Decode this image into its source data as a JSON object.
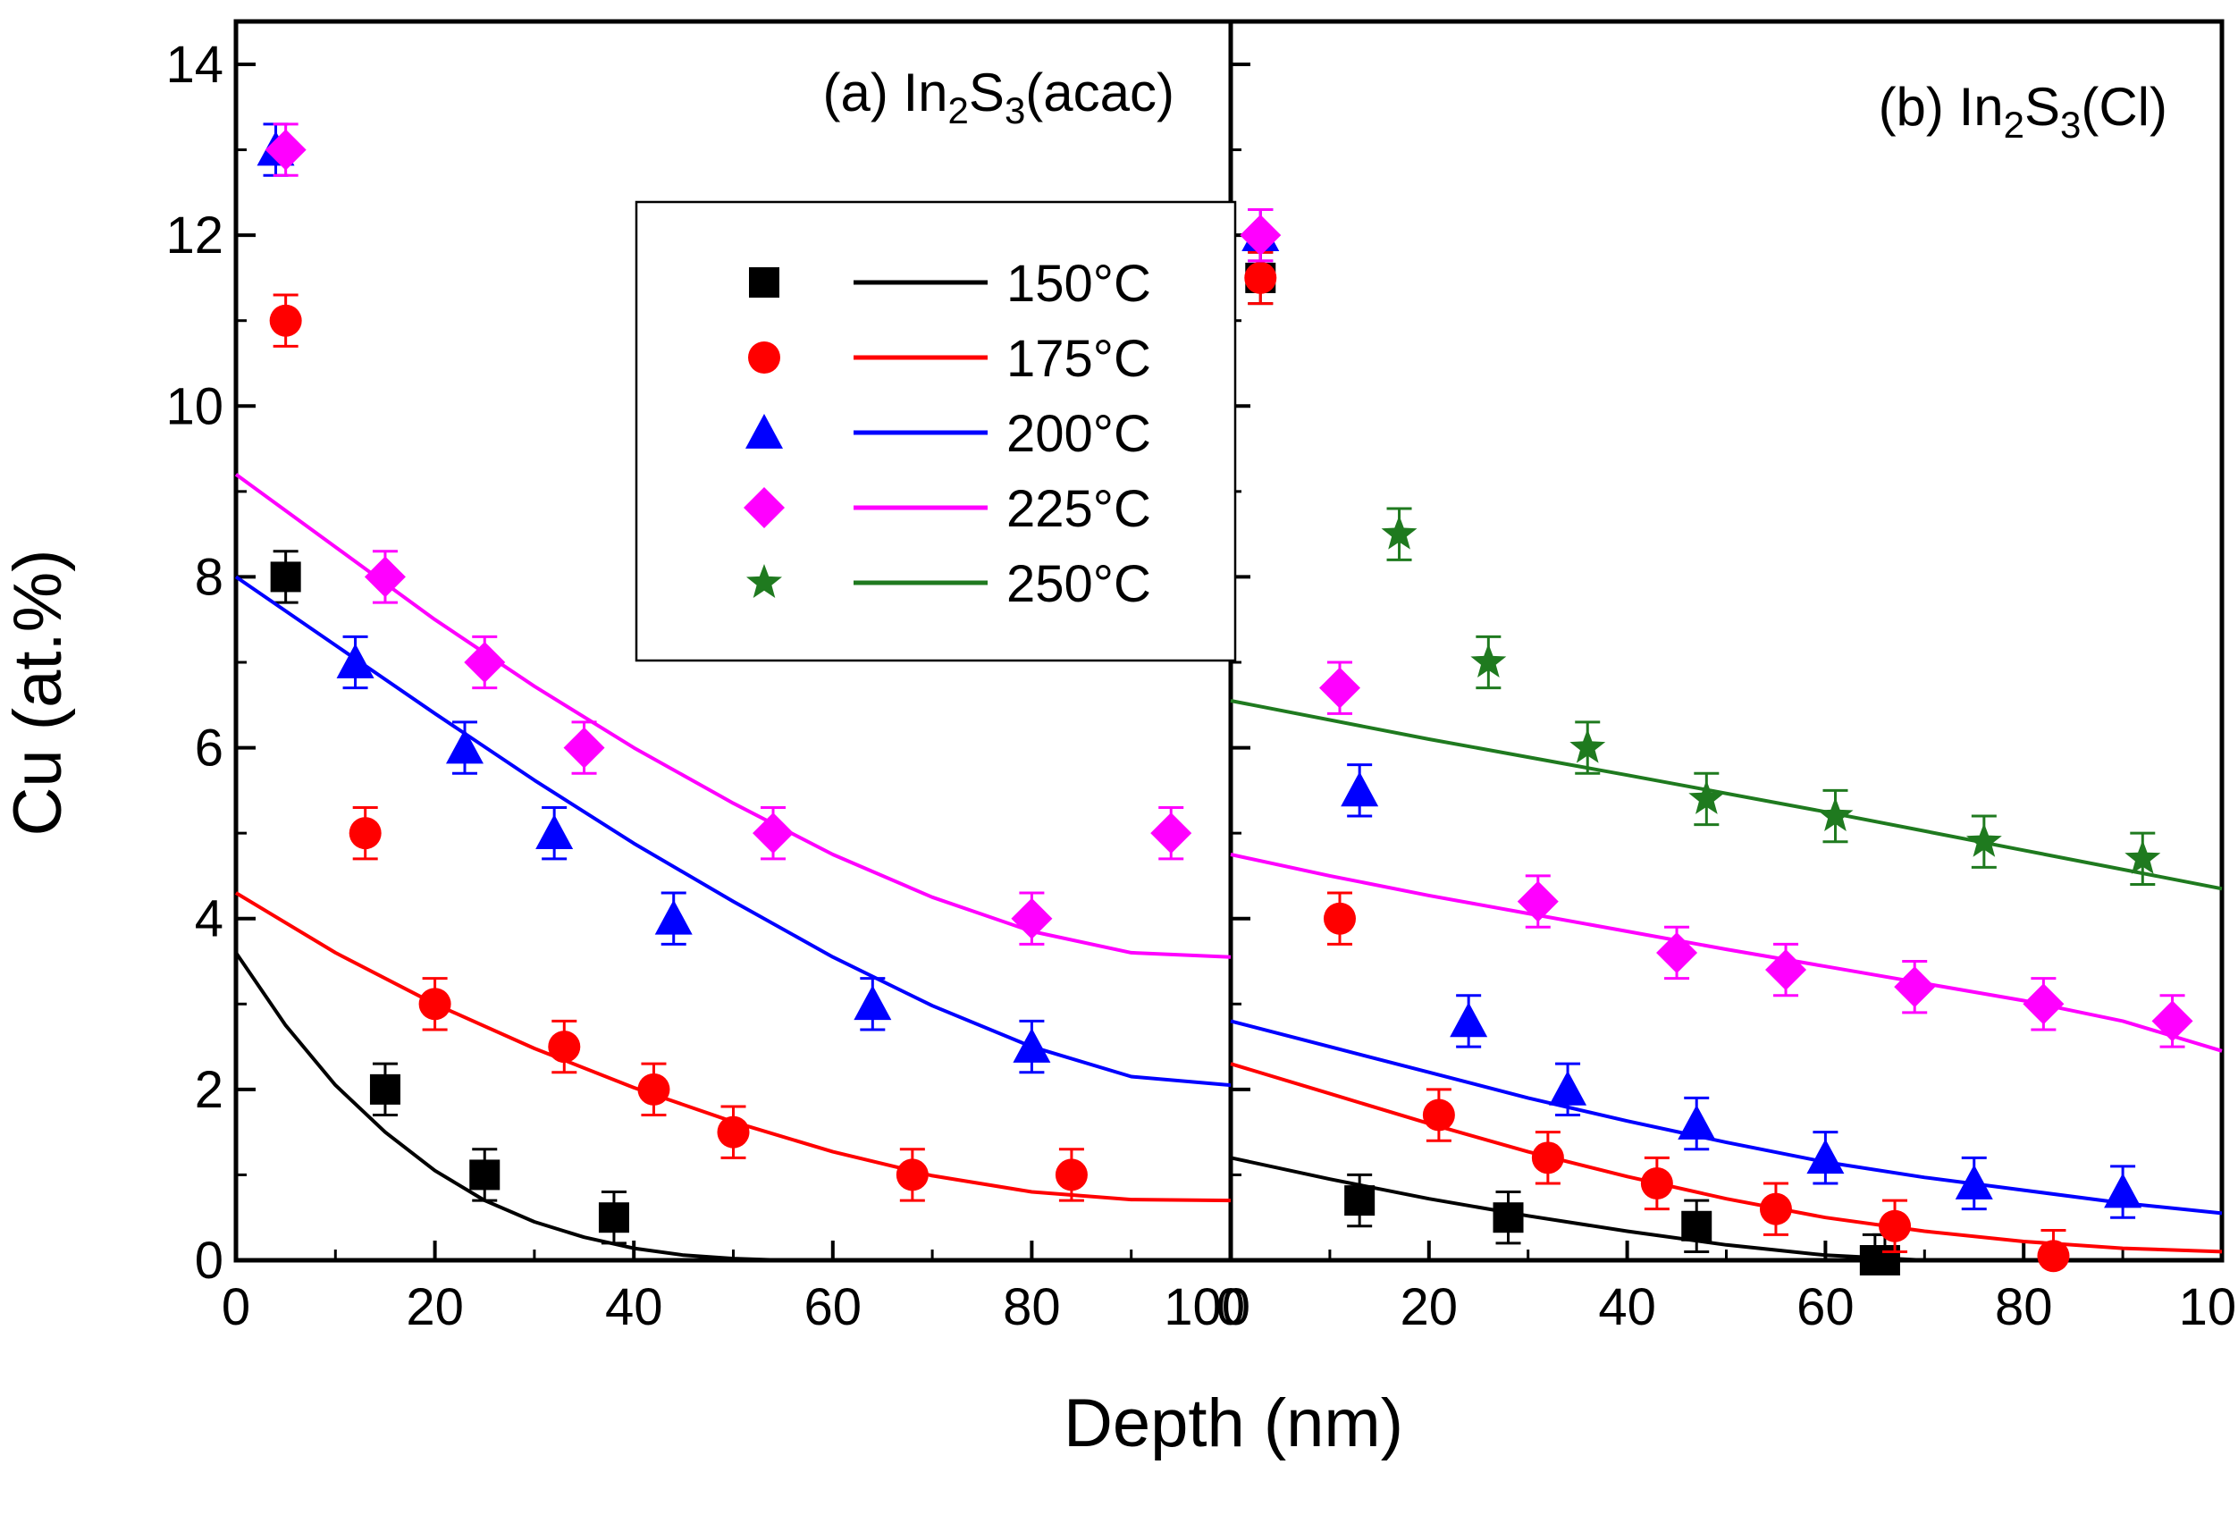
{
  "chart_data": {
    "type": "scatter",
    "ylabel": "Cu (at.%)",
    "xlabel": "Depth (nm)",
    "ylim": [
      0,
      14
    ],
    "yticks": [
      "0",
      "2",
      "4",
      "6",
      "8",
      "10",
      "12",
      "14"
    ],
    "xlim": [
      0,
      100
    ],
    "xticks": [
      "0",
      "20",
      "40",
      "60",
      "80",
      "100"
    ],
    "legend": {
      "placement": "top-right of panel (a)",
      "entries": [
        {
          "label": "150°C",
          "color": "#000000",
          "marker": "square"
        },
        {
          "label": "175°C",
          "color": "#ff0000",
          "marker": "circle"
        },
        {
          "label": "200°C",
          "color": "#0000ff",
          "marker": "triangle"
        },
        {
          "label": "225°C",
          "color": "#ff00ff",
          "marker": "diamond"
        },
        {
          "label": "250°C",
          "color": "#1f7a1f",
          "marker": "star"
        }
      ]
    },
    "panels": [
      {
        "label": {
          "prefix": "(a) In",
          "sub1": "2",
          "mid": "S",
          "sub2": "3",
          "suffix": "(acac)"
        },
        "series": [
          {
            "name": "150°C",
            "points": [
              [
                5,
                8.0
              ],
              [
                15,
                2.0
              ],
              [
                25,
                1.0
              ],
              [
                38,
                0.5
              ]
            ],
            "err": 0.3,
            "fit": [
              [
                0,
                3.6
              ],
              [
                5,
                2.75
              ],
              [
                10,
                2.05
              ],
              [
                15,
                1.5
              ],
              [
                20,
                1.05
              ],
              [
                25,
                0.7
              ],
              [
                30,
                0.45
              ],
              [
                35,
                0.27
              ],
              [
                40,
                0.14
              ],
              [
                45,
                0.06
              ],
              [
                50,
                0.02
              ],
              [
                55,
                0.0
              ],
              [
                65,
                0.0
              ]
            ]
          },
          {
            "name": "175°C",
            "points": [
              [
                5,
                11.0
              ],
              [
                13,
                5.0
              ],
              [
                20,
                3.0
              ],
              [
                33,
                2.5
              ],
              [
                42,
                2.0
              ],
              [
                50,
                1.5
              ],
              [
                68,
                1.0
              ],
              [
                84,
                1.0
              ]
            ],
            "err": 0.3,
            "fit": [
              [
                0,
                4.3
              ],
              [
                10,
                3.6
              ],
              [
                20,
                3.0
              ],
              [
                30,
                2.48
              ],
              [
                40,
                2.02
              ],
              [
                50,
                1.62
              ],
              [
                60,
                1.27
              ],
              [
                70,
                0.99
              ],
              [
                80,
                0.8
              ],
              [
                90,
                0.71
              ],
              [
                100,
                0.7
              ]
            ]
          },
          {
            "name": "200°C",
            "points": [
              [
                4,
                13.0
              ],
              [
                12,
                7.0
              ],
              [
                23,
                6.0
              ],
              [
                32,
                5.0
              ],
              [
                44,
                4.0
              ],
              [
                64,
                3.0
              ],
              [
                80,
                2.5
              ]
            ],
            "err": 0.3,
            "fit": [
              [
                0,
                8.0
              ],
              [
                10,
                7.2
              ],
              [
                20,
                6.4
              ],
              [
                30,
                5.62
              ],
              [
                40,
                4.88
              ],
              [
                50,
                4.2
              ],
              [
                60,
                3.55
              ],
              [
                70,
                2.98
              ],
              [
                80,
                2.5
              ],
              [
                90,
                2.15
              ],
              [
                100,
                2.05
              ]
            ]
          },
          {
            "name": "225°C",
            "points": [
              [
                5,
                13.0
              ],
              [
                15,
                8.0
              ],
              [
                25,
                7.0
              ],
              [
                35,
                6.0
              ],
              [
                54,
                5.0
              ],
              [
                80,
                4.0
              ],
              [
                94,
                5.0
              ]
            ],
            "err": 0.3,
            "fit": [
              [
                0,
                9.2
              ],
              [
                10,
                8.35
              ],
              [
                20,
                7.5
              ],
              [
                30,
                6.72
              ],
              [
                40,
                6.0
              ],
              [
                50,
                5.35
              ],
              [
                60,
                4.75
              ],
              [
                70,
                4.25
              ],
              [
                80,
                3.85
              ],
              [
                90,
                3.6
              ],
              [
                100,
                3.55
              ]
            ]
          }
        ]
      },
      {
        "label": {
          "prefix": "(b) In",
          "sub1": "2",
          "mid": "S",
          "sub2": "3",
          "suffix": "(Cl)"
        },
        "series": [
          {
            "name": "150°C",
            "points": [
              [
                3,
                11.5
              ],
              [
                13,
                0.7
              ],
              [
                28,
                0.5
              ],
              [
                47,
                0.4
              ],
              [
                65,
                0.0
              ],
              [
                66,
                0.0
              ]
            ],
            "err": 0.3,
            "fit": [
              [
                0,
                1.2
              ],
              [
                10,
                0.95
              ],
              [
                20,
                0.72
              ],
              [
                30,
                0.52
              ],
              [
                40,
                0.34
              ],
              [
                50,
                0.18
              ],
              [
                60,
                0.06
              ],
              [
                70,
                0.0
              ],
              [
                80,
                0.0
              ]
            ]
          },
          {
            "name": "175°C",
            "points": [
              [
                3,
                11.5
              ],
              [
                11,
                4.0
              ],
              [
                21,
                1.7
              ],
              [
                32,
                1.2
              ],
              [
                43,
                0.9
              ],
              [
                55,
                0.6
              ],
              [
                67,
                0.4
              ],
              [
                83,
                0.05
              ]
            ],
            "err": 0.3,
            "fit": [
              [
                0,
                2.3
              ],
              [
                10,
                1.95
              ],
              [
                20,
                1.6
              ],
              [
                30,
                1.27
              ],
              [
                40,
                0.98
              ],
              [
                50,
                0.72
              ],
              [
                60,
                0.5
              ],
              [
                70,
                0.34
              ],
              [
                80,
                0.22
              ],
              [
                90,
                0.14
              ],
              [
                100,
                0.1
              ]
            ]
          },
          {
            "name": "200°C",
            "points": [
              [
                3,
                12.0
              ],
              [
                13,
                5.5
              ],
              [
                24,
                2.8
              ],
              [
                34,
                2.0
              ],
              [
                47,
                1.6
              ],
              [
                60,
                1.2
              ],
              [
                75,
                0.9
              ],
              [
                90,
                0.8
              ]
            ],
            "err": 0.3,
            "fit": [
              [
                0,
                2.8
              ],
              [
                10,
                2.5
              ],
              [
                20,
                2.2
              ],
              [
                30,
                1.9
              ],
              [
                40,
                1.63
              ],
              [
                50,
                1.38
              ],
              [
                60,
                1.15
              ],
              [
                70,
                0.97
              ],
              [
                80,
                0.82
              ],
              [
                90,
                0.67
              ],
              [
                100,
                0.55
              ]
            ]
          },
          {
            "name": "225°C",
            "points": [
              [
                3,
                12.0
              ],
              [
                11,
                6.7
              ],
              [
                31,
                4.2
              ],
              [
                45,
                3.6
              ],
              [
                56,
                3.4
              ],
              [
                69,
                3.2
              ],
              [
                82,
                3.0
              ],
              [
                95,
                2.8
              ]
            ],
            "err": 0.3,
            "fit": [
              [
                0,
                4.75
              ],
              [
                10,
                4.5
              ],
              [
                20,
                4.27
              ],
              [
                30,
                4.06
              ],
              [
                40,
                3.85
              ],
              [
                50,
                3.64
              ],
              [
                60,
                3.44
              ],
              [
                70,
                3.24
              ],
              [
                80,
                3.04
              ],
              [
                90,
                2.8
              ],
              [
                100,
                2.45
              ]
            ]
          },
          {
            "name": "250°C",
            "points": [
              [
                17,
                8.5
              ],
              [
                26,
                7.0
              ],
              [
                36,
                6.0
              ],
              [
                48,
                5.4
              ],
              [
                61,
                5.2
              ],
              [
                76,
                4.9
              ],
              [
                92,
                4.7
              ]
            ],
            "err": 0.3,
            "fit": [
              [
                0,
                6.55
              ],
              [
                20,
                6.1
              ],
              [
                40,
                5.68
              ],
              [
                60,
                5.25
              ],
              [
                80,
                4.8
              ],
              [
                100,
                4.35
              ]
            ]
          }
        ]
      }
    ]
  }
}
